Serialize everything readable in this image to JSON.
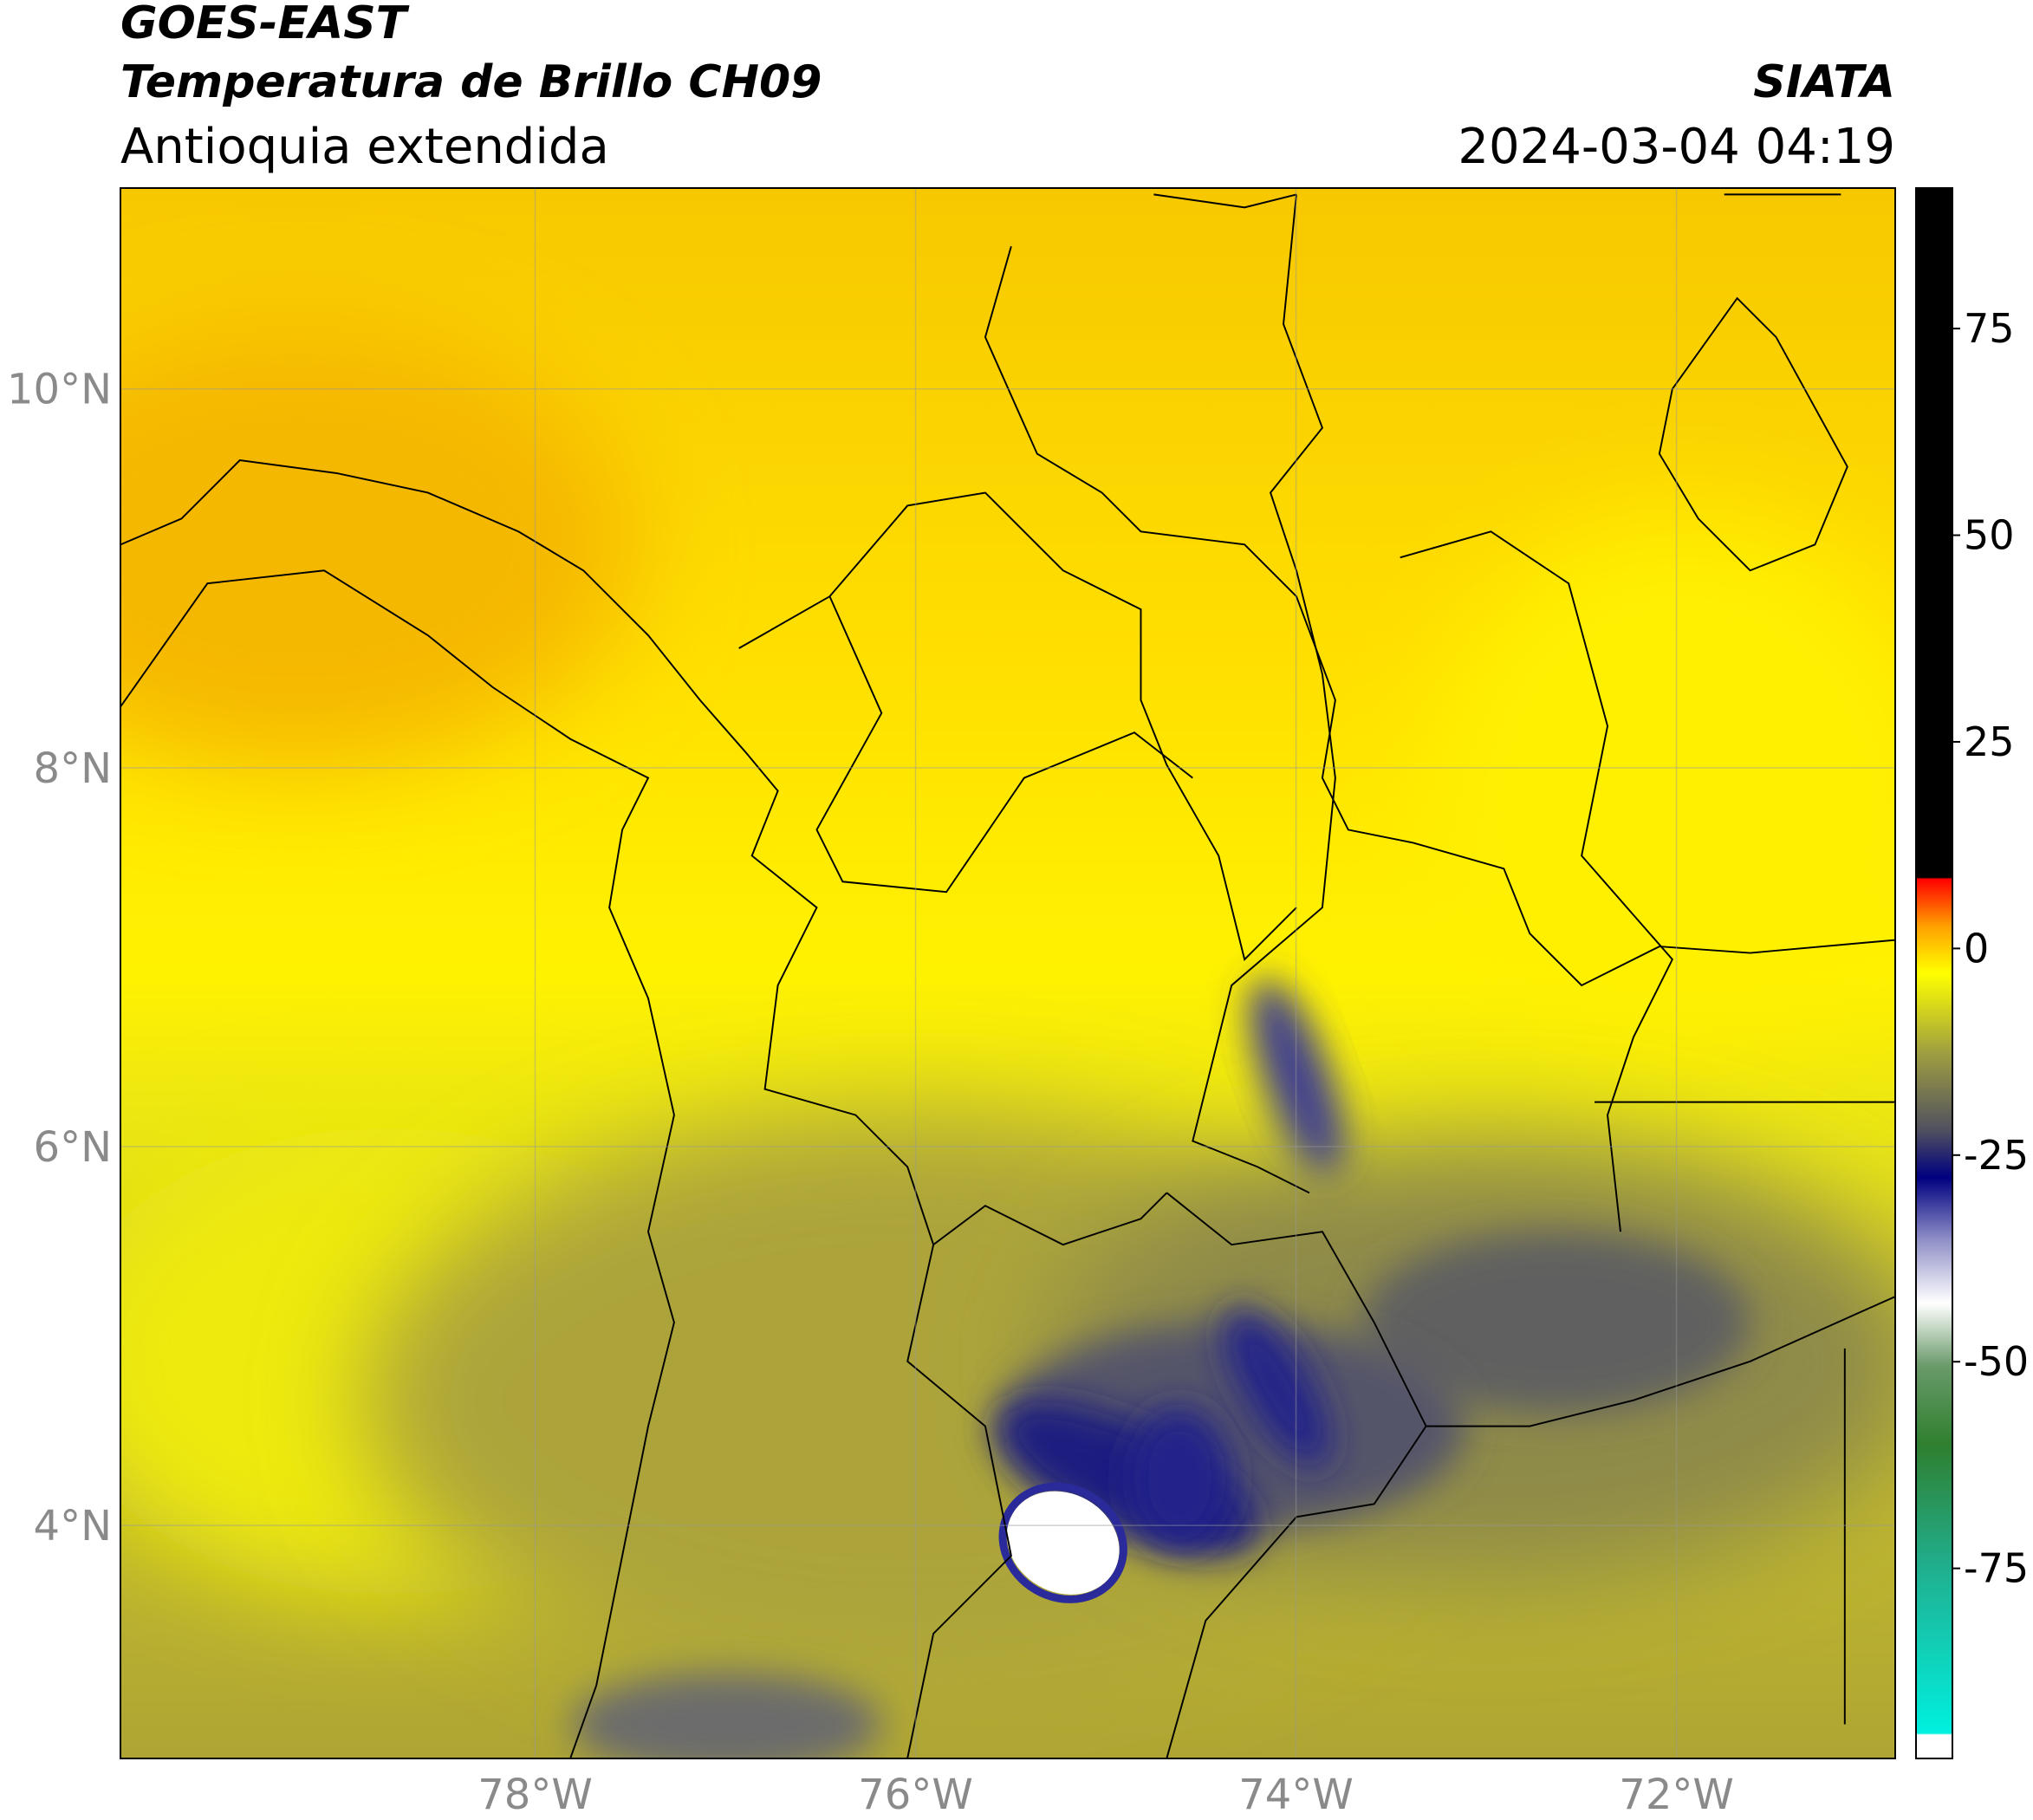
{
  "map_data": {
    "title": "GOES-EAST",
    "subtitle": "Temperatura de Brillo CH09",
    "region": "Antioquia extendida",
    "source": "SIATA",
    "timestamp": "2024-03-04 04:19",
    "xlim": [
      -80.18,
      -70.85
    ],
    "ylim": [
      2.77,
      11.06
    ],
    "xticks": [
      {
        "value": -78,
        "label": "78°W"
      },
      {
        "value": -76,
        "label": "76°W"
      },
      {
        "value": -74,
        "label": "74°W"
      },
      {
        "value": -72,
        "label": "72°W"
      }
    ],
    "yticks": [
      {
        "value": 4,
        "label": "4°N"
      },
      {
        "value": 6,
        "label": "6°N"
      },
      {
        "value": 8,
        "label": "8°N"
      },
      {
        "value": 10,
        "label": "10°N"
      }
    ],
    "grid": true,
    "colorbar": {
      "lim": [
        -98,
        92
      ],
      "ticks": [
        75,
        50,
        25,
        0,
        -25,
        -50,
        -75
      ]
    }
  }
}
